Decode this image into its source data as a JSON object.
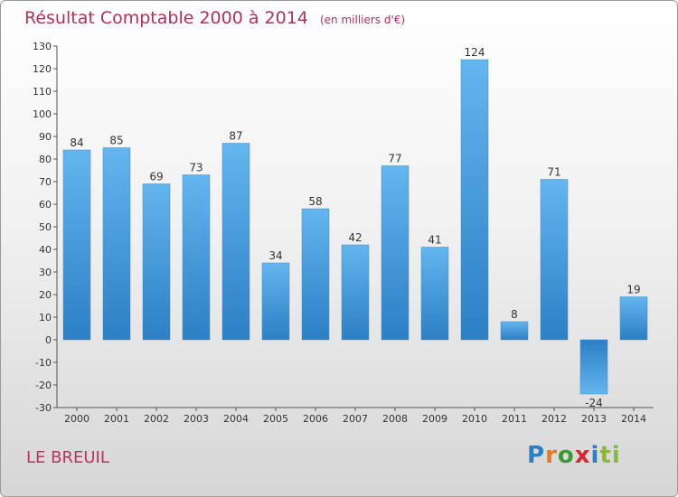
{
  "title": "Résultat Comptable 2000 à 2014",
  "unit": "(en milliers d'€)",
  "commune": "LE BREUIL",
  "logo": [
    "P",
    "r",
    "o",
    "x",
    "i",
    "ti"
  ],
  "colors": {
    "title": "#b0305e",
    "bar_light": "#63b6ee",
    "bar_dark": "#2b82c7"
  },
  "chart_data": {
    "type": "bar",
    "title": "Résultat Comptable 2000 à 2014",
    "xlabel": "",
    "ylabel": "(en milliers d'€)",
    "categories": [
      "2000",
      "2001",
      "2002",
      "2003",
      "2004",
      "2005",
      "2006",
      "2007",
      "2008",
      "2009",
      "2010",
      "2011",
      "2012",
      "2013",
      "2014"
    ],
    "values": [
      84,
      85,
      69,
      73,
      87,
      34,
      58,
      42,
      77,
      41,
      124,
      8,
      71,
      -24,
      19
    ],
    "ylim": [
      -30,
      130
    ],
    "yticks": [
      130,
      120,
      110,
      100,
      90,
      80,
      70,
      60,
      50,
      40,
      30,
      20,
      10,
      0,
      -10,
      -20,
      -30
    ],
    "grid": false,
    "legend": "none"
  }
}
